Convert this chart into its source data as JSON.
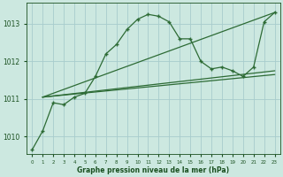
{
  "bg_color": "#cce8e0",
  "grid_color": "#a8cccc",
  "line_color": "#2d6b35",
  "text_color": "#1a5020",
  "xlabel": "Graphe pression niveau de la mer (hPa)",
  "xlim": [
    -0.5,
    23.5
  ],
  "ylim": [
    1009.55,
    1013.55
  ],
  "yticks": [
    1010,
    1011,
    1012,
    1013
  ],
  "xticks": [
    0,
    1,
    2,
    3,
    4,
    5,
    6,
    7,
    8,
    9,
    10,
    11,
    12,
    13,
    14,
    15,
    16,
    17,
    18,
    19,
    20,
    21,
    22,
    23
  ],
  "series_marker": {
    "x": [
      0,
      1,
      2,
      3,
      4,
      5,
      6,
      7,
      8,
      9,
      10,
      11,
      12,
      13,
      14,
      15,
      16,
      17,
      18,
      19,
      20,
      21,
      22,
      23
    ],
    "y": [
      1009.65,
      1010.15,
      1010.9,
      1010.85,
      1011.05,
      1011.15,
      1011.6,
      1012.2,
      1012.45,
      1012.85,
      1013.12,
      1013.25,
      1013.2,
      1013.05,
      1012.6,
      1012.6,
      1012.0,
      1011.8,
      1011.85,
      1011.75,
      1011.6,
      1011.85,
      1013.05,
      1013.3
    ]
  },
  "series_linear1": {
    "x": [
      1,
      23
    ],
    "y": [
      1011.05,
      1013.3
    ]
  },
  "series_linear2": {
    "x": [
      1,
      23
    ],
    "y": [
      1011.05,
      1011.65
    ]
  },
  "series_linear3": {
    "x": [
      1,
      23
    ],
    "y": [
      1011.05,
      1011.75
    ]
  }
}
